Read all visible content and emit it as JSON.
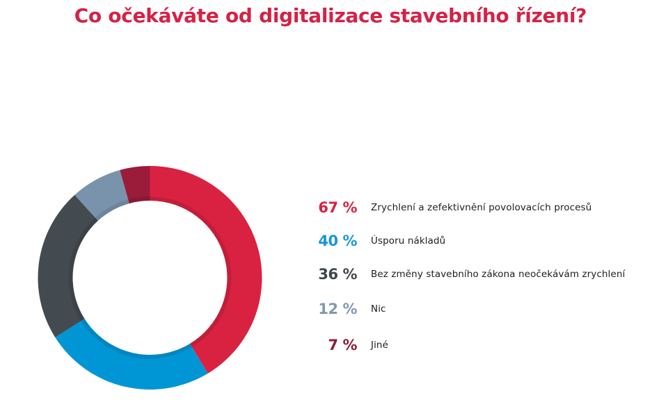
{
  "chart_data": {
    "type": "pie",
    "variant": "donut",
    "title": "Co očekáváte od digitalizace stavebního řízení?",
    "title_color": "#D42246",
    "start": "12 o'clock, clockwise",
    "legend_position": "right",
    "series": [
      {
        "name": "Zrychlení a zefektivnění povolovacích procesů",
        "value": 67,
        "label": "67 %",
        "color": "#D92241",
        "text_color": "#D92241"
      },
      {
        "name": "Úsporu nákladů",
        "value": 40,
        "label": "40 %",
        "color": "#0096D6",
        "text_color": "#1A97D4"
      },
      {
        "name": "Bez změny stavebního zákona neočekávám zrychlení",
        "value": 36,
        "label": "36 %",
        "color": "#434A50",
        "text_color": "#3F464C"
      },
      {
        "name": "Nic",
        "value": 12,
        "label": "12 %",
        "color": "#7A93AC",
        "text_color": "#8198AF"
      },
      {
        "name": "Jiné",
        "value": 7,
        "label": "7 %",
        "color": "#9A1B3A",
        "text_color": "#8E1B37"
      }
    ]
  }
}
